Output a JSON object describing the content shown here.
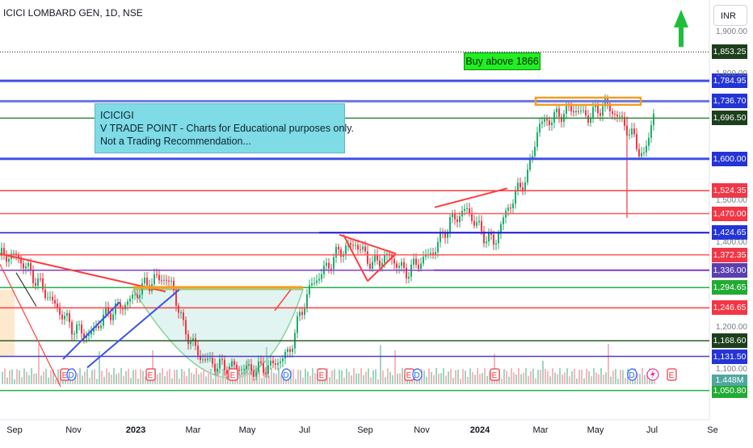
{
  "header": {
    "title": "ICICI LOMBARD GEN, 1D, NSE",
    "currency": "INR"
  },
  "annotations": {
    "note_lines": [
      "ICICIGI",
      "V TRADE POINT - Charts for Educational purposes only.",
      "Not a Trading Recommendation..."
    ],
    "buy_label": "Buy above 1866"
  },
  "colors": {
    "blue": "#3f51e8",
    "red": "#ff3d3d",
    "green": "#22b14c",
    "orange": "#f0a020",
    "purple": "#7b3fc4",
    "navy": "#1a1ad0",
    "up": "#22ab6e",
    "down": "#f23645"
  },
  "chart_data": {
    "type": "candlestick",
    "title": "ICICI LOMBARD GEN, 1D, NSE",
    "y_axis": {
      "ticks": [
        "1,900.00",
        "1,800.00",
        "1,500.00",
        "1,400.00",
        "1,200.00",
        "1,100.00"
      ],
      "range": [
        1030,
        1930
      ]
    },
    "x_axis": {
      "labels": [
        "Sep",
        "Nov",
        "2023",
        "Mar",
        "May",
        "Jul",
        "Sep",
        "Nov",
        "2024",
        "Mar",
        "May",
        "Jul",
        "Se"
      ],
      "bold_labels": [
        "2023",
        "2024"
      ]
    },
    "levels": [
      {
        "price": 1853.25,
        "label": "1,853.25",
        "style": "dotted",
        "color": "#131722",
        "label_bg": "#1c3f1c"
      },
      {
        "price": 1784.95,
        "label": "1,784.95",
        "style": "solid",
        "color": "#3f51e8",
        "label_bg": "#2434d6"
      },
      {
        "price": 1736.7,
        "label": "1,736.70",
        "style": "solid",
        "color": "#6b76e0",
        "label_bg": "#2434d6"
      },
      {
        "price": 1696.5,
        "label": "1,696.50",
        "style": "solid",
        "color": "#2d8a3e",
        "label_bg": "#1c3f1c"
      },
      {
        "price": 1600.0,
        "label": "1,600.00",
        "style": "solid",
        "color": "#3f51e8",
        "label_bg": "#2434d6"
      },
      {
        "price": 1524.35,
        "label": "1,524.35",
        "style": "solid",
        "color": "#ff3d3d",
        "label_bg": "#f23645"
      },
      {
        "price": 1470.0,
        "label": "1,470.00",
        "style": "solid",
        "color": "#ff5a5a",
        "label_bg": "#f23645"
      },
      {
        "price": 1424.65,
        "label": "1,424.65",
        "style": "solid",
        "color": "#1a1ad0",
        "label_bg": "#2434d6"
      },
      {
        "price": 1372.35,
        "label": "1,372.35",
        "style": "solid",
        "color": "#ff5a5a",
        "label_bg": "#f23645"
      },
      {
        "price": 1336.0,
        "label": "1,336.00",
        "style": "solid",
        "color": "#7b3fc4",
        "label_bg": "#5b3fb0"
      },
      {
        "price": 1294.65,
        "label": "1,294.65",
        "style": "solid",
        "color": "#22b14c",
        "label_bg": "#22ab33"
      },
      {
        "price": 1246.65,
        "label": "1,246.65",
        "style": "solid",
        "color": "#ff3d3d",
        "label_bg": "#f23645"
      },
      {
        "price": 1168.6,
        "label": "1,168.60",
        "style": "solid",
        "color": "#2d5a2d",
        "label_bg": "#1c3f1c"
      },
      {
        "price": 1131.5,
        "label": "1,131.50",
        "style": "solid",
        "color": "#4a3fd0",
        "label_bg": "#2434d6"
      },
      {
        "price": 1050.8,
        "label": "1,050.80",
        "style": "solid",
        "color": "#22b14c",
        "label_bg": "#22ab33"
      }
    ],
    "volume_label": "1.448M",
    "event_markers": [
      "E",
      "D",
      "E",
      "E",
      "D",
      "E",
      "E",
      "D",
      "E",
      "D",
      "E"
    ],
    "price_path": [
      [
        0,
        1370
      ],
      [
        0.3,
        1320
      ],
      [
        0.7,
        1250
      ],
      [
        1.0,
        1200
      ],
      [
        1.3,
        1180
      ],
      [
        1.6,
        1230
      ],
      [
        2.0,
        1260
      ],
      [
        2.3,
        1300
      ],
      [
        2.6,
        1320
      ],
      [
        2.8,
        1300
      ],
      [
        3.0,
        1200
      ],
      [
        3.3,
        1130
      ],
      [
        3.6,
        1110
      ],
      [
        4.0,
        1105
      ],
      [
        4.3,
        1100
      ],
      [
        4.6,
        1110
      ],
      [
        4.9,
        1140
      ],
      [
        5.1,
        1230
      ],
      [
        5.3,
        1300
      ],
      [
        5.5,
        1330
      ],
      [
        5.8,
        1380
      ],
      [
        6.1,
        1400
      ],
      [
        6.4,
        1350
      ],
      [
        6.7,
        1370
      ],
      [
        7.0,
        1330
      ],
      [
        7.2,
        1350
      ],
      [
        7.5,
        1380
      ],
      [
        7.8,
        1450
      ],
      [
        8.1,
        1480
      ],
      [
        8.4,
        1420
      ],
      [
        8.6,
        1400
      ],
      [
        8.8,
        1470
      ],
      [
        9.0,
        1520
      ],
      [
        9.2,
        1560
      ],
      [
        9.4,
        1680
      ],
      [
        9.7,
        1700
      ],
      [
        10.0,
        1720
      ],
      [
        10.3,
        1700
      ],
      [
        10.6,
        1730
      ],
      [
        10.9,
        1690
      ],
      [
        11.1,
        1650
      ],
      [
        11.3,
        1600
      ],
      [
        11.45,
        1700
      ],
      [
        11.6,
        1780
      ],
      [
        11.8,
        1850
      ],
      [
        11.9,
        1880
      ]
    ]
  }
}
